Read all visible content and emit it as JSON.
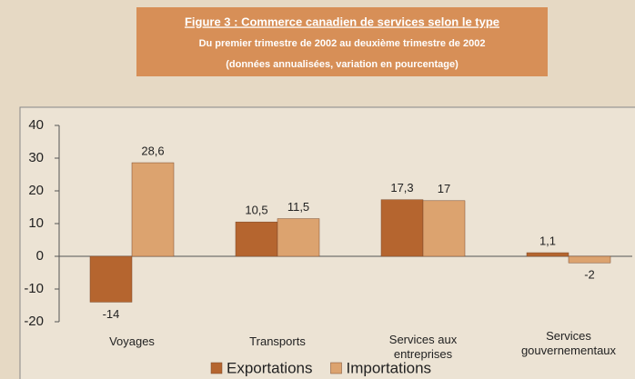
{
  "chart_data": {
    "type": "bar",
    "title": "Figure 3 : Commerce canadien de services selon le type",
    "subtitle": "Du premier trimestre de 2002 au deuxième trimestre de 2002",
    "note": "(données annualisées, variation en pourcentage)",
    "categories": [
      "Voyages",
      "Transports",
      "Services aux entreprises",
      "Services gouvernementaux"
    ],
    "series": [
      {
        "name": "Exportations",
        "color": "#b5652f",
        "values": [
          -14,
          10.5,
          17.3,
          1.1
        ],
        "value_labels": [
          "-14",
          "10,5",
          "17,3",
          "1,1"
        ]
      },
      {
        "name": "Importations",
        "color": "#dca36f",
        "values": [
          28.6,
          11.5,
          17,
          -2
        ],
        "value_labels": [
          "28,6",
          "11,5",
          "17",
          "-2"
        ]
      }
    ],
    "ylim": [
      -20,
      40
    ],
    "yticks": [
      -20,
      -10,
      0,
      10,
      20,
      30,
      40
    ],
    "legend": "bottom"
  }
}
